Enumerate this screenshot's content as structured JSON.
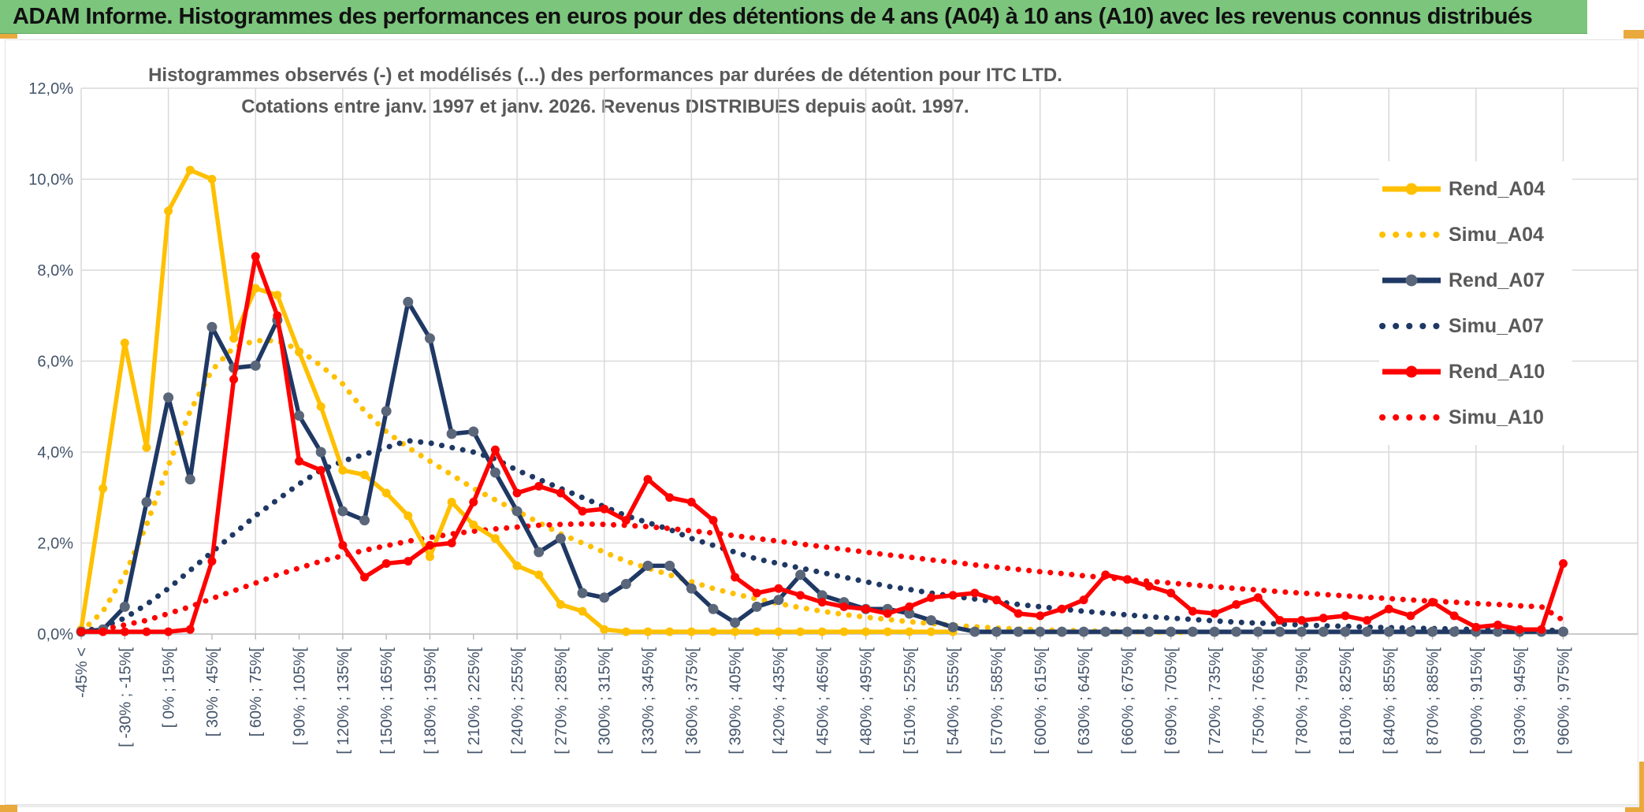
{
  "window": {
    "title": "ADAM Informe. Histogrammes des performances en euros pour des détentions de 4 ans (A04) à 10 ans (A10) avec les revenus connus distribués"
  },
  "colors": {
    "banner_bg": "#7CC57D",
    "banner_text": "#111111",
    "accent_gold": "#E9A93C",
    "grid": "#D9D9D9",
    "axis": "#BFBFBF",
    "tick_label": "#44546A",
    "title_text": "#595959",
    "legend_text": "#595959",
    "gold": "#FFC000",
    "navy": "#1F3864",
    "navy_marker": "#5A6679",
    "red": "#FF0000"
  },
  "chart_data": {
    "type": "line",
    "title_line1": "Histogrammes observés (-) et modélisés (...) des performances par durées de détention pour ITC LTD.",
    "title_line2": "Cotations entre janv. 1997 et janv. 2026. Revenus DISTRIBUES depuis août. 1997.",
    "grid": true,
    "legend_position": "right",
    "ylim": [
      0,
      12
    ],
    "y_tick_labels": [
      "0,0%",
      "2,0%",
      "4,0%",
      "6,0%",
      "8,0%",
      "10,0%",
      "12,0%"
    ],
    "points_count": 69,
    "label_every_n_points": 2,
    "x_tick_labels": [
      "-45% <",
      "[ -30% ; -15%[",
      "[ 0% ; 15%[",
      "[ 30% ; 45%[",
      "[ 60% ; 75%[",
      "[ 90% ; 105%[",
      "[ 120% ; 135%[",
      "[ 150% ; 165%[",
      "[ 180% ; 195%[",
      "[ 210% ; 225%[",
      "[ 240% ; 255%[",
      "[ 270% ; 285%[",
      "[ 300% ; 315%[",
      "[ 330% ; 345%[",
      "[ 360% ; 375%[",
      "[ 390% ; 405%[",
      "[ 420% ; 435%[",
      "[ 450% ; 465%[",
      "[ 480% ; 495%[",
      "[ 510% ; 525%[",
      "[ 540% ; 555%[",
      "[ 570% ; 585%[",
      "[ 600% ; 615%[",
      "[ 630% ; 645%[",
      "[ 660% ; 675%[",
      "[ 690% ; 705%[",
      "[ 720% ; 735%[",
      "[ 750% ; 765%[",
      "[ 780% ; 795%[",
      "[ 810% ; 825%[",
      "[ 840% ; 855%[",
      "[ 870% ; 885%[",
      "[ 900% ; 915%[",
      "[ 930% ; 945%[",
      "[ 960% ; 975%["
    ],
    "series": [
      {
        "name": "Rend_A04",
        "style": "solid",
        "color": "#FFC000",
        "marker_color": "#FFC000",
        "values": [
          0.1,
          3.2,
          6.4,
          4.1,
          9.3,
          10.2,
          10.0,
          6.5,
          7.6,
          7.45,
          6.2,
          5.0,
          3.6,
          3.5,
          3.1,
          2.6,
          1.7,
          2.9,
          2.4,
          2.1,
          1.5,
          1.3,
          0.65,
          0.5,
          0.1,
          0.05,
          0.05,
          0.05,
          0.05,
          0.05,
          0.05,
          0.05,
          0.05,
          0.05,
          0.05,
          0.05,
          0.05,
          0.05,
          0.05,
          0.05,
          0.05
        ]
      },
      {
        "name": "Simu_A04",
        "style": "dotted",
        "color": "#FFC000",
        "values": [
          0.05,
          0.5,
          1.3,
          2.4,
          3.7,
          4.9,
          5.8,
          6.3,
          6.45,
          6.45,
          6.25,
          5.9,
          5.5,
          4.9,
          4.45,
          4.1,
          3.8,
          3.5,
          3.2,
          2.95,
          2.7,
          2.45,
          2.2,
          2.0,
          1.8,
          1.6,
          1.45,
          1.3,
          1.15,
          1.0,
          0.88,
          0.77,
          0.67,
          0.58,
          0.5,
          0.43,
          0.37,
          0.32,
          0.27,
          0.23,
          0.19,
          0.16,
          0.13,
          0.11,
          0.09,
          0.08,
          0.07,
          0.06,
          0.05,
          0.04,
          0.04,
          0.03
        ]
      },
      {
        "name": "Rend_A07",
        "style": "solid",
        "color": "#1F3864",
        "marker_color": "#5A6679",
        "values": [
          0.05,
          0.1,
          0.6,
          2.9,
          5.2,
          3.4,
          6.75,
          5.85,
          5.9,
          6.9,
          4.8,
          4.0,
          2.7,
          2.5,
          4.9,
          7.3,
          6.5,
          4.4,
          4.45,
          3.55,
          2.7,
          1.8,
          2.1,
          0.9,
          0.8,
          1.1,
          1.5,
          1.5,
          1.0,
          0.55,
          0.25,
          0.6,
          0.75,
          1.3,
          0.85,
          0.7,
          0.55,
          0.55,
          0.45,
          0.3,
          0.15,
          0.05,
          0.05,
          0.05,
          0.05,
          0.05,
          0.05,
          0.05,
          0.05,
          0.05,
          0.05,
          0.05,
          0.05,
          0.05,
          0.05,
          0.05,
          0.05,
          0.05,
          0.05,
          0.05,
          0.05,
          0.05,
          0.05,
          0.05,
          0.05,
          0.05,
          0.05,
          0.05,
          0.05
        ]
      },
      {
        "name": "Simu_A07",
        "style": "dotted",
        "color": "#1F3864",
        "values": [
          0.05,
          0.15,
          0.35,
          0.65,
          1.0,
          1.4,
          1.8,
          2.2,
          2.6,
          2.95,
          3.3,
          3.6,
          3.8,
          3.95,
          4.1,
          4.25,
          4.2,
          4.1,
          4.0,
          3.85,
          3.6,
          3.4,
          3.2,
          3.0,
          2.8,
          2.6,
          2.45,
          2.3,
          2.1,
          1.95,
          1.8,
          1.65,
          1.55,
          1.45,
          1.35,
          1.25,
          1.15,
          1.05,
          0.98,
          0.9,
          0.83,
          0.77,
          0.71,
          0.65,
          0.6,
          0.55,
          0.5,
          0.46,
          0.42,
          0.38,
          0.35,
          0.32,
          0.29,
          0.26,
          0.24,
          0.22,
          0.2,
          0.18,
          0.17,
          0.15,
          0.14,
          0.13,
          0.12,
          0.11,
          0.1,
          0.09,
          0.09,
          0.08,
          0.08
        ]
      },
      {
        "name": "Rend_A10",
        "style": "solid",
        "color": "#FF0000",
        "marker_color": "#FF0000",
        "values": [
          0.05,
          0.05,
          0.05,
          0.05,
          0.05,
          0.1,
          1.6,
          5.6,
          8.3,
          7.0,
          3.8,
          3.6,
          1.95,
          1.25,
          1.55,
          1.6,
          1.95,
          2.0,
          2.9,
          4.05,
          3.1,
          3.25,
          3.1,
          2.7,
          2.75,
          2.5,
          3.4,
          3.0,
          2.9,
          2.5,
          1.25,
          0.9,
          1.0,
          0.85,
          0.7,
          0.6,
          0.55,
          0.45,
          0.6,
          0.8,
          0.85,
          0.9,
          0.75,
          0.45,
          0.4,
          0.55,
          0.75,
          1.3,
          1.2,
          1.05,
          0.9,
          0.5,
          0.45,
          0.65,
          0.8,
          0.3,
          0.3,
          0.35,
          0.4,
          0.3,
          0.55,
          0.4,
          0.7,
          0.4,
          0.15,
          0.2,
          0.1,
          0.1,
          1.55
        ]
      },
      {
        "name": "Simu_A10",
        "style": "dotted",
        "color": "#FF0000",
        "values": [
          0.05,
          0.1,
          0.2,
          0.3,
          0.45,
          0.6,
          0.78,
          0.95,
          1.12,
          1.3,
          1.45,
          1.6,
          1.72,
          1.84,
          1.94,
          2.04,
          2.12,
          2.2,
          2.26,
          2.31,
          2.35,
          2.39,
          2.41,
          2.42,
          2.41,
          2.39,
          2.36,
          2.32,
          2.27,
          2.22,
          2.16,
          2.1,
          2.04,
          1.98,
          1.92,
          1.86,
          1.8,
          1.74,
          1.69,
          1.63,
          1.58,
          1.52,
          1.47,
          1.42,
          1.37,
          1.33,
          1.28,
          1.24,
          1.2,
          1.16,
          1.12,
          1.08,
          1.04,
          1.0,
          0.97,
          0.93,
          0.9,
          0.87,
          0.84,
          0.81,
          0.78,
          0.75,
          0.72,
          0.7,
          0.67,
          0.65,
          0.62,
          0.6,
          0.3
        ]
      }
    ]
  }
}
